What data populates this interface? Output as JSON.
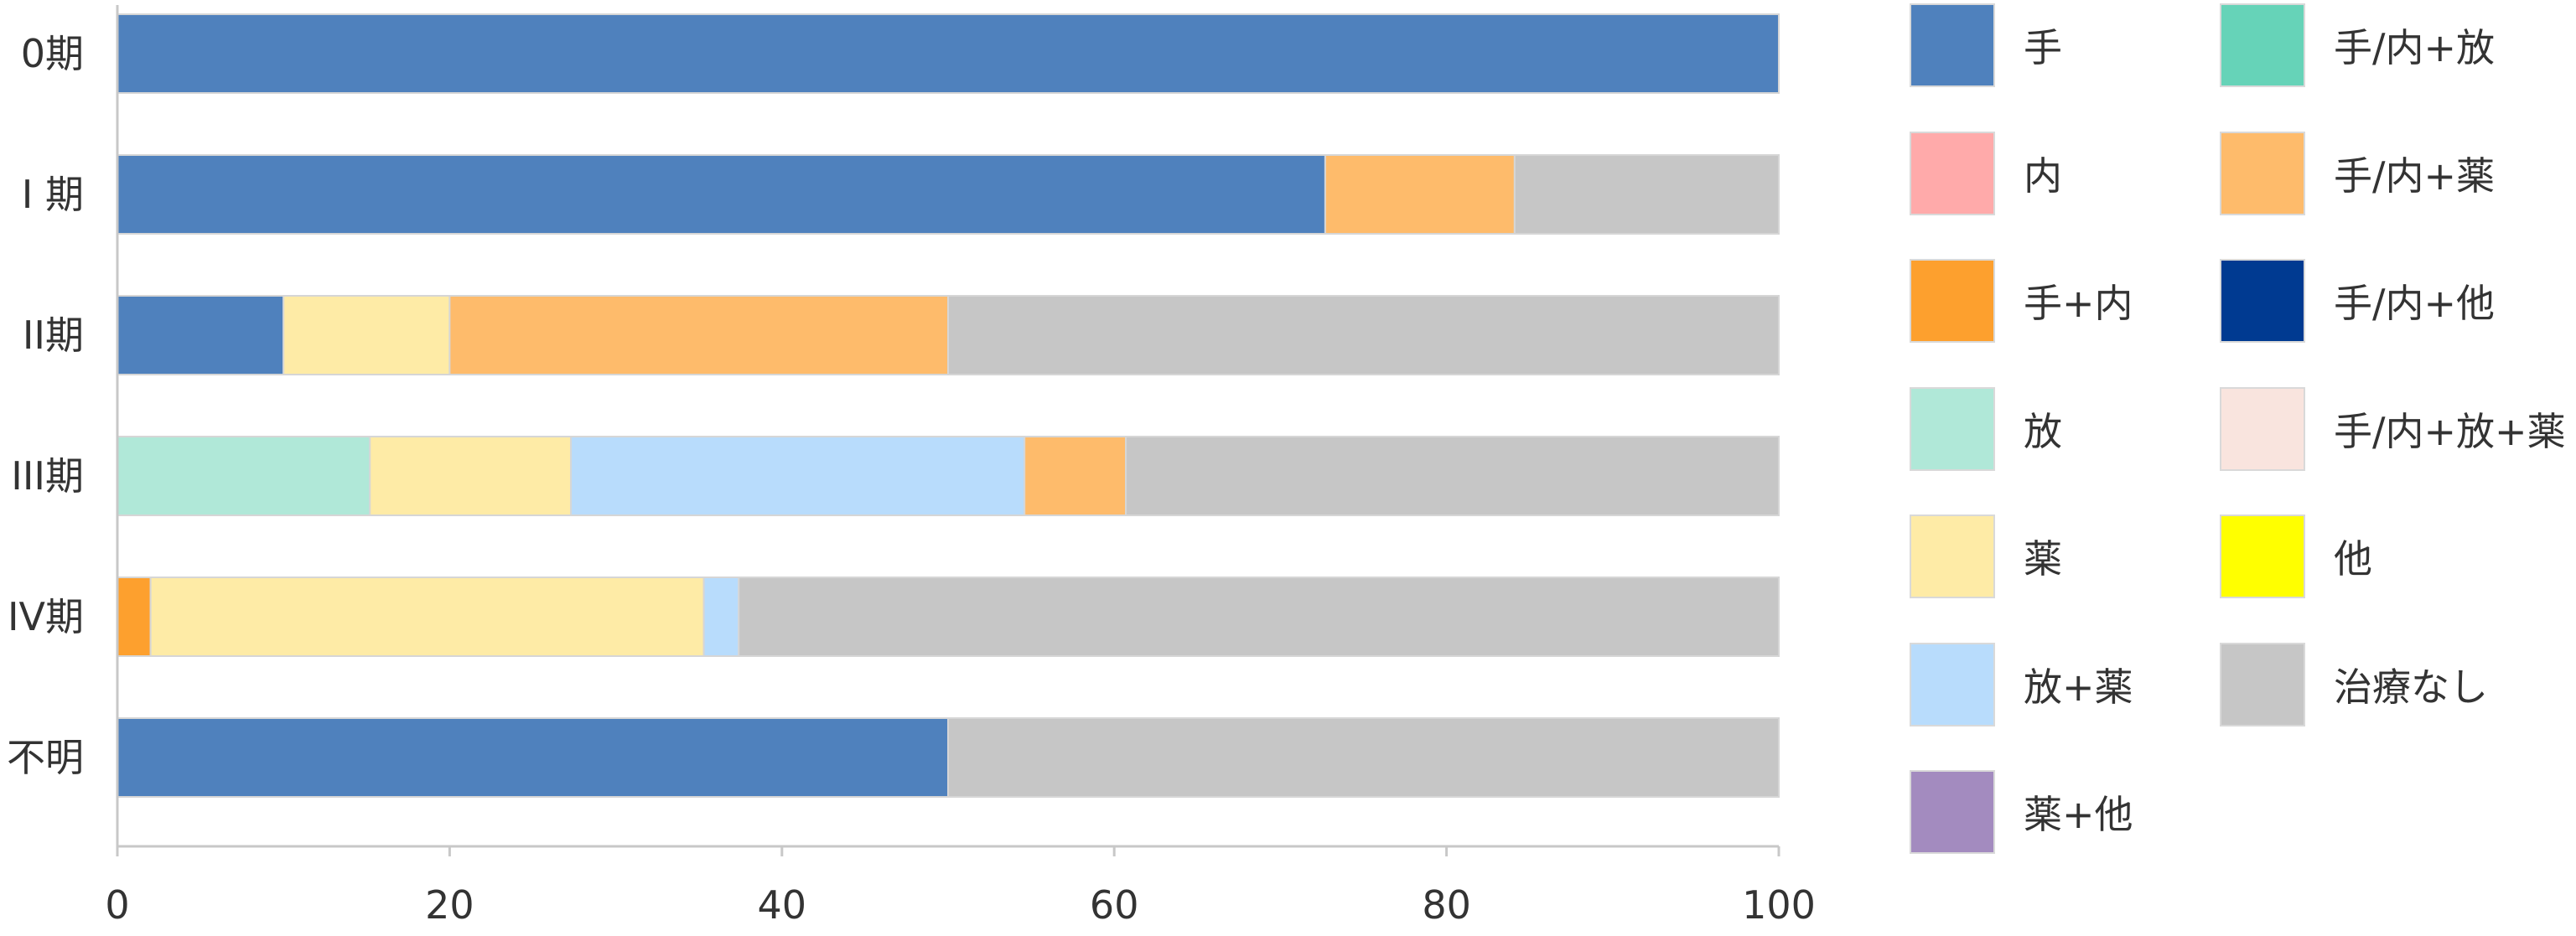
{
  "chart_data": {
    "type": "bar",
    "orientation": "horizontal",
    "stacked": true,
    "categories": [
      "0期",
      "I 期",
      "II期",
      "III期",
      "IV期",
      "不明"
    ],
    "xlim": [
      0,
      100
    ],
    "xticks": [
      0,
      20,
      40,
      60,
      80,
      100
    ],
    "grid": false,
    "legend_position": "right",
    "series": [
      {
        "name": "手",
        "color": "#4f81bd",
        "values": [
          100,
          72.7,
          10,
          0,
          0,
          50
        ]
      },
      {
        "name": "内",
        "color": "#ffaaaa",
        "values": [
          0,
          0,
          0,
          0,
          0,
          0
        ]
      },
      {
        "name": "手+内",
        "color": "#fda02e",
        "values": [
          0,
          0,
          0,
          0,
          2,
          0
        ]
      },
      {
        "name": "放",
        "color": "#b0e8d8",
        "values": [
          0,
          0,
          0,
          15.2,
          0,
          0
        ]
      },
      {
        "name": "薬",
        "color": "#feeba6",
        "values": [
          0,
          0,
          10,
          12.1,
          33.3,
          0
        ]
      },
      {
        "name": "放+薬",
        "color": "#b8dcfc",
        "values": [
          0,
          0,
          0,
          27.3,
          2.1,
          0
        ]
      },
      {
        "name": "薬+他",
        "color": "#a38bbf",
        "values": [
          0,
          0,
          0,
          0,
          0,
          0
        ]
      },
      {
        "name": "手/内+放",
        "color": "#66d3b8",
        "values": [
          0,
          0,
          0,
          0,
          0,
          0
        ]
      },
      {
        "name": "手/内+薬",
        "color": "#febb6b",
        "values": [
          0,
          11.4,
          30,
          6.1,
          0,
          0
        ]
      },
      {
        "name": "手/内+他",
        "color": "#003a91",
        "values": [
          0,
          0,
          0,
          0,
          0,
          0
        ]
      },
      {
        "name": "手/内+放+薬",
        "color": "#f9e4de",
        "values": [
          0,
          0,
          0,
          0,
          0,
          0
        ]
      },
      {
        "name": "他",
        "color": "#ffff00",
        "values": [
          0,
          0,
          0,
          0,
          0,
          0
        ]
      },
      {
        "name": "治療なし",
        "color": "#c6c6c6",
        "values": [
          0,
          15.9,
          50,
          39.3,
          62.6,
          50
        ]
      }
    ]
  }
}
